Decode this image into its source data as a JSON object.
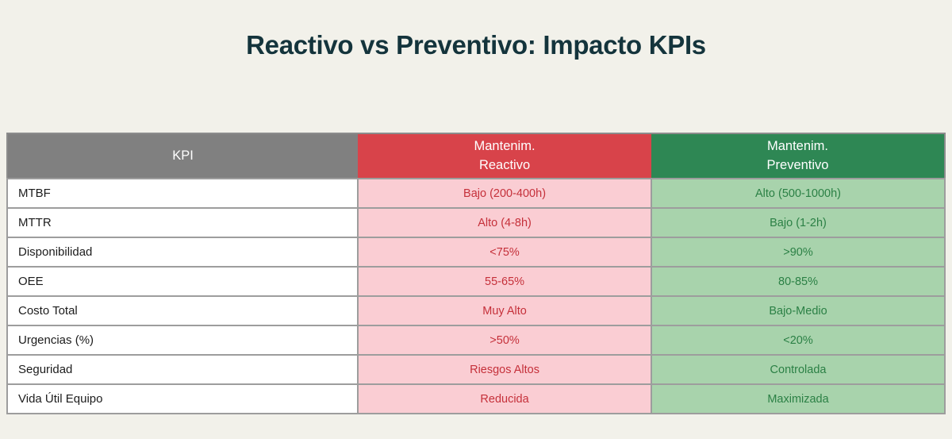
{
  "page": {
    "title": "Reactivo vs Preventivo: Impacto KPIs"
  },
  "colors": {
    "page_bg": "#f2f1ea",
    "title_text": "#14343c",
    "outer_border": "#8c8c8c",
    "cell_border": "#9d9d9d",
    "header_kpi_bg": "#808080",
    "header_reactivo_bg": "#d8434a",
    "header_preventivo_bg": "#2e8754",
    "cell_reactivo_bg": "#facdd3",
    "cell_reactivo_text": "#c5303a",
    "cell_preventivo_bg": "#a8d3ac",
    "cell_preventivo_text": "#2b8045",
    "kpi_text": "#1c1c1c"
  },
  "table": {
    "header": {
      "kpi": "KPI",
      "reactivo_line1": "Mantenim.",
      "reactivo_line2": "Reactivo",
      "preventivo_line1": "Mantenim.",
      "preventivo_line2": "Preventivo"
    },
    "rows": [
      {
        "kpi": "MTBF",
        "reactivo": "Bajo (200-400h)",
        "preventivo": "Alto (500-1000h)"
      },
      {
        "kpi": "MTTR",
        "reactivo": "Alto (4-8h)",
        "preventivo": "Bajo (1-2h)"
      },
      {
        "kpi": "Disponibilidad",
        "reactivo": "<75%",
        "preventivo": ">90%"
      },
      {
        "kpi": "OEE",
        "reactivo": "55-65%",
        "preventivo": "80-85%"
      },
      {
        "kpi": "Costo Total",
        "reactivo": "Muy Alto",
        "preventivo": "Bajo-Medio"
      },
      {
        "kpi": "Urgencias (%)",
        "reactivo": ">50%",
        "preventivo": "<20%"
      },
      {
        "kpi": "Seguridad",
        "reactivo": "Riesgos Altos",
        "preventivo": "Controlada"
      },
      {
        "kpi": "Vida Útil Equipo",
        "reactivo": "Reducida",
        "preventivo": "Maximizada"
      }
    ]
  },
  "chart_data": {
    "type": "table",
    "title": "Reactivo vs Preventivo: Impacto KPIs",
    "columns": [
      "KPI",
      "Mantenim. Reactivo",
      "Mantenim. Preventivo"
    ],
    "rows": [
      [
        "MTBF",
        "Bajo (200-400h)",
        "Alto (500-1000h)"
      ],
      [
        "MTTR",
        "Alto (4-8h)",
        "Bajo (1-2h)"
      ],
      [
        "Disponibilidad",
        "<75%",
        ">90%"
      ],
      [
        "OEE",
        "55-65%",
        "80-85%"
      ],
      [
        "Costo Total",
        "Muy Alto",
        "Bajo-Medio"
      ],
      [
        "Urgencias (%)",
        ">50%",
        "<20%"
      ],
      [
        "Seguridad",
        "Riesgos Altos",
        "Controlada"
      ],
      [
        "Vida Útil Equipo",
        "Reducida",
        "Maximizada"
      ]
    ]
  }
}
